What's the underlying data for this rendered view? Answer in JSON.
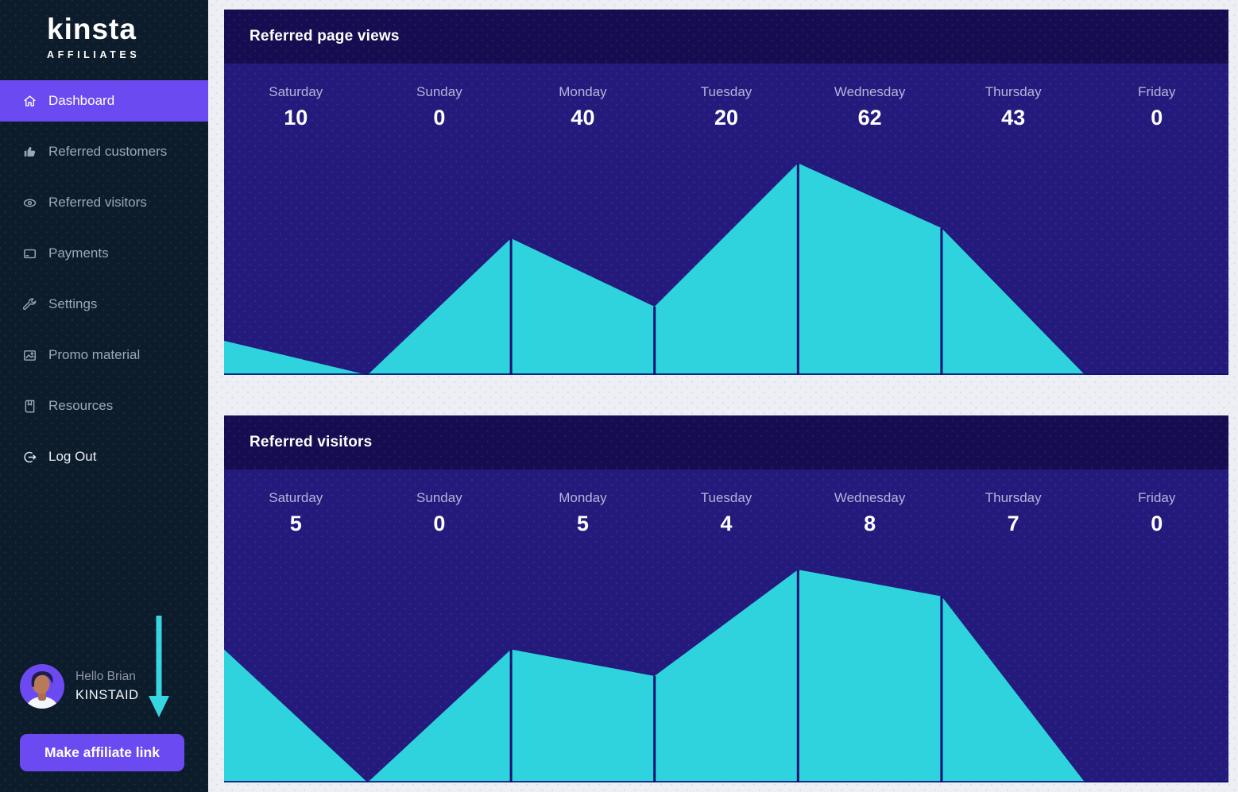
{
  "colors": {
    "accent_purple": "#6b4af2",
    "sidebar_bg": "#0d1c2b",
    "page_bg": "#edeff4",
    "chart_header_bg": "#160d50",
    "chart_body_bg": "#231a7c",
    "area_cyan": "#2ed3de",
    "data_line": "#0d1173",
    "nav_text": "#9ba7b9",
    "day_label": "#b7b4d9",
    "annotation_arrow": "#35d6e0"
  },
  "sidebar": {
    "brand": {
      "name": "kinsta",
      "tagline": "AFFILIATES"
    },
    "items": [
      {
        "label": "Dashboard",
        "icon": "home",
        "active": true
      },
      {
        "label": "Referred customers",
        "icon": "thumbs-up",
        "active": false
      },
      {
        "label": "Referred visitors",
        "icon": "eye",
        "active": false
      },
      {
        "label": "Payments",
        "icon": "credit-card",
        "active": false
      },
      {
        "label": "Settings",
        "icon": "wrench",
        "active": false
      },
      {
        "label": "Promo material",
        "icon": "image",
        "active": false
      },
      {
        "label": "Resources",
        "icon": "book",
        "active": false
      },
      {
        "label": "Log Out",
        "icon": "logout",
        "active": false
      }
    ],
    "user": {
      "greeting": "Hello Brian",
      "code": "KINSTAID"
    },
    "cta_label": "Make affiliate link"
  },
  "chart_data": [
    {
      "type": "area",
      "title": "Referred page views",
      "categories": [
        "Saturday",
        "Sunday",
        "Monday",
        "Tuesday",
        "Wednesday",
        "Thursday",
        "Friday"
      ],
      "values": [
        10,
        0,
        40,
        20,
        62,
        43,
        0
      ],
      "xlabel": "",
      "ylabel": "",
      "ylim": [
        0,
        91
      ],
      "grid": false,
      "legend": "none",
      "area_color": "#2ed3de",
      "bg_color": "#231a7c",
      "marker_line_color": "#0d1173"
    },
    {
      "type": "area",
      "title": "Referred visitors",
      "categories": [
        "Saturday",
        "Sunday",
        "Monday",
        "Tuesday",
        "Wednesday",
        "Thursday",
        "Friday"
      ],
      "values": [
        5,
        0,
        5,
        4,
        8,
        7,
        0
      ],
      "xlabel": "",
      "ylabel": "",
      "ylim": [
        0,
        12
      ],
      "grid": false,
      "legend": "none",
      "area_color": "#2ed3de",
      "bg_color": "#231a7c",
      "marker_line_color": "#0d1173"
    }
  ]
}
